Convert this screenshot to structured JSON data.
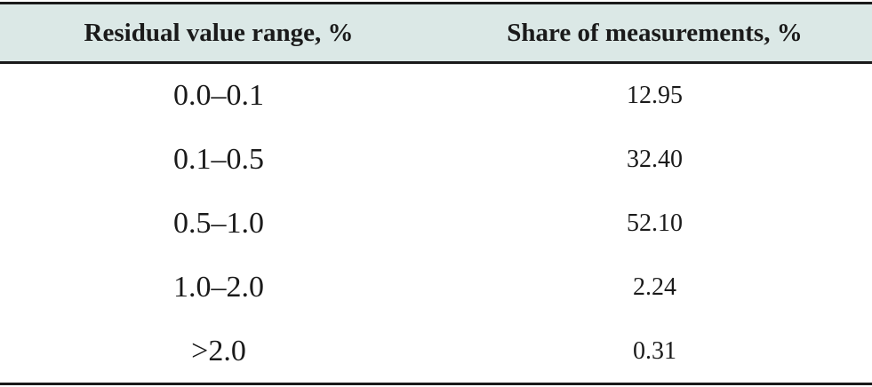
{
  "table": {
    "headers": [
      "Residual value range, %",
      "Share of measurements, %"
    ],
    "rows": [
      [
        "0.0–0.1",
        "12.95"
      ],
      [
        "0.1–0.5",
        "32.40"
      ],
      [
        "0.5–1.0",
        "52.10"
      ],
      [
        "1.0–2.0",
        "2.24"
      ],
      [
        ">2.0",
        "0.31"
      ]
    ],
    "colors": {
      "header_background": "#dbe8e6",
      "rule": "#1a1a1a",
      "text": "#1a1a1a"
    }
  }
}
